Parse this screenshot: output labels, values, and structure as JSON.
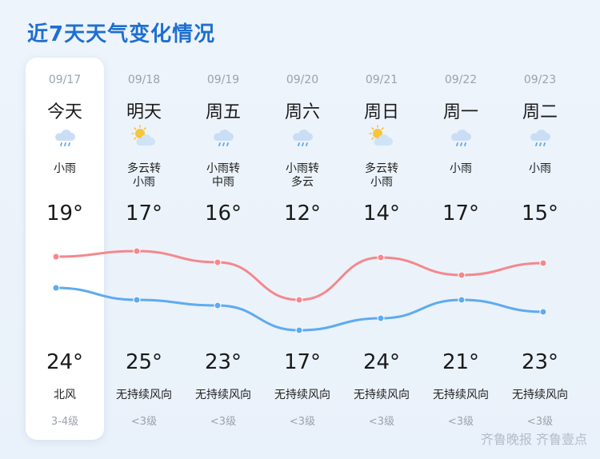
{
  "title": "近7天天气变化情况",
  "days": [
    {
      "date": "09/17",
      "day": "今天",
      "cond1": "小雨",
      "cond2": "",
      "icon": "cloud-rain-icon",
      "hi": "19°",
      "lo": "24°",
      "wind": "北风",
      "level": "3-4级"
    },
    {
      "date": "09/18",
      "day": "明天",
      "cond1": "多云转",
      "cond2": "小雨",
      "icon": "sun-cloud-icon",
      "hi": "17°",
      "lo": "25°",
      "wind": "无持续风向",
      "level": "<3级"
    },
    {
      "date": "09/19",
      "day": "周五",
      "cond1": "小雨转",
      "cond2": "中雨",
      "icon": "cloud-rain-icon",
      "hi": "16°",
      "lo": "23°",
      "wind": "无持续风向",
      "level": "<3级"
    },
    {
      "date": "09/20",
      "day": "周六",
      "cond1": "小雨转",
      "cond2": "多云",
      "icon": "cloud-rain-icon",
      "hi": "12°",
      "lo": "17°",
      "wind": "无持续风向",
      "level": "<3级"
    },
    {
      "date": "09/21",
      "day": "周日",
      "cond1": "多云转",
      "cond2": "小雨",
      "icon": "sun-cloud-icon",
      "hi": "14°",
      "lo": "24°",
      "wind": "无持续风向",
      "level": "<3级"
    },
    {
      "date": "09/22",
      "day": "周一",
      "cond1": "小雨",
      "cond2": "",
      "icon": "cloud-rain-icon",
      "hi": "17°",
      "lo": "21°",
      "wind": "无持续风向",
      "level": "<3级"
    },
    {
      "date": "09/23",
      "day": "周二",
      "cond1": "小雨",
      "cond2": "",
      "icon": "cloud-rain-icon",
      "hi": "15°",
      "lo": "23°",
      "wind": "无持续风向",
      "level": "<3级"
    }
  ],
  "colors": {
    "upper_curve": "#f4888d",
    "lower_curve": "#5eabf0",
    "title": "#1e6fd0"
  },
  "watermark": "齐鲁晚报 齐鲁壹点"
}
